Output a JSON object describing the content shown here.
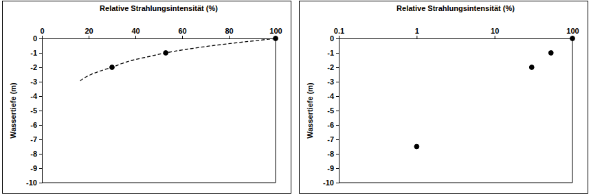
{
  "chart_data": [
    {
      "type": "scatter",
      "x_label": "Relative Strahlungsintensität  (%)",
      "y_label": "Wassertiefe (m)",
      "xlim": [
        0,
        100
      ],
      "xticks": [
        0,
        20,
        40,
        60,
        80,
        100
      ],
      "ylim": [
        -10,
        0
      ],
      "yticks": [
        0,
        -1,
        -2,
        -3,
        -4,
        -5,
        -6,
        -7,
        -8,
        -9,
        -10
      ],
      "series": [
        {
          "type": "scatter",
          "marker": "circle",
          "color": "#000000",
          "x": [
            100,
            53,
            30
          ],
          "values": [
            0,
            -1,
            -2
          ]
        },
        {
          "type": "line",
          "line_style": "dashed",
          "color": "#000000",
          "x": [
            100,
            86,
            73,
            62,
            53,
            46,
            39,
            34,
            30,
            25,
            21,
            18,
            16
          ],
          "values": [
            0,
            -0.25,
            -0.5,
            -0.75,
            -1,
            -1.25,
            -1.5,
            -1.75,
            -2,
            -2.25,
            -2.5,
            -2.75,
            -3
          ]
        }
      ]
    },
    {
      "type": "scatter",
      "x_label": "Relative Strahlungsintensität  (%)",
      "y_label": "Wassertiefe (m)",
      "log": "x",
      "xlim": [
        0.1,
        100
      ],
      "xticks": [
        0.1,
        1,
        10,
        100
      ],
      "ylim": [
        -10,
        0
      ],
      "yticks": [
        0,
        -1,
        -2,
        -3,
        -4,
        -5,
        -6,
        -7,
        -8,
        -9,
        -10
      ],
      "series": [
        {
          "type": "scatter",
          "marker": "circle",
          "color": "#000000",
          "x": [
            100,
            53,
            30,
            1
          ],
          "values": [
            0,
            -1,
            -2,
            -7.5
          ]
        }
      ]
    }
  ]
}
